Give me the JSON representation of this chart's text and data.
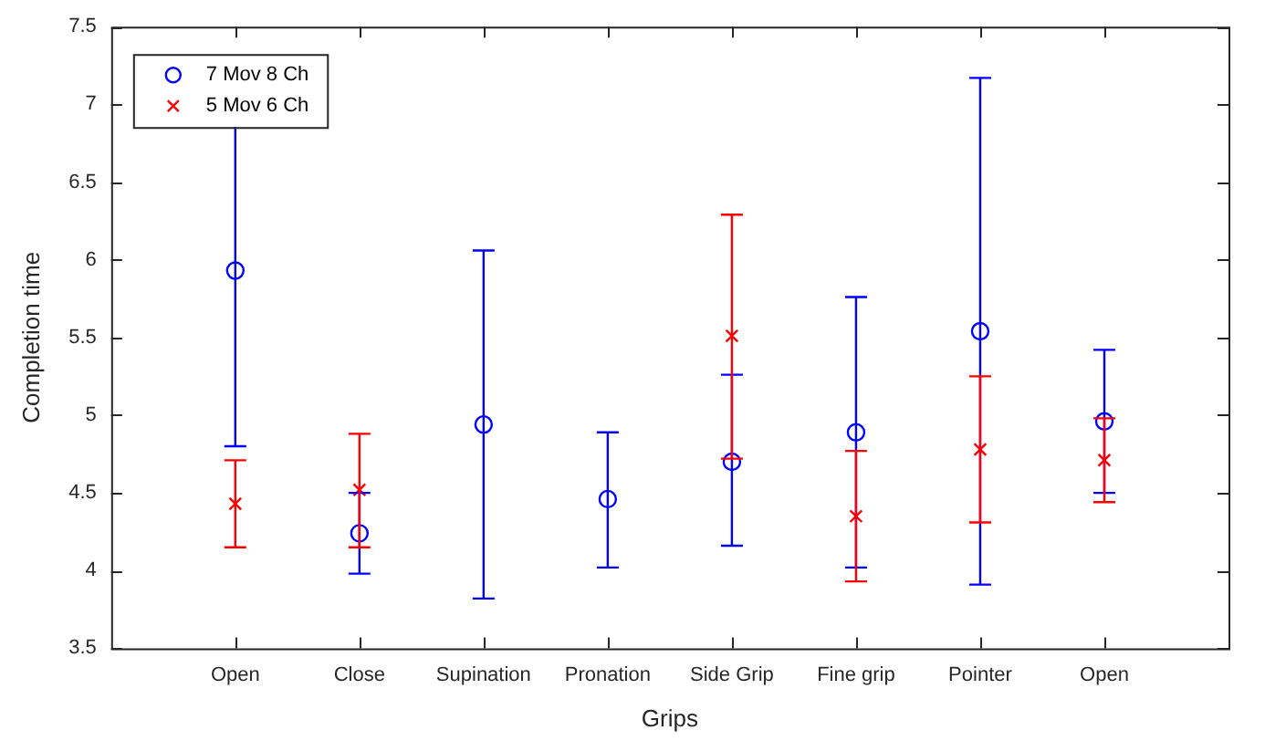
{
  "chart_data": {
    "type": "scatter",
    "xlabel": "Grips",
    "ylabel": "Completion time",
    "categories": [
      "Open",
      "Close",
      "Supination",
      "Pronation",
      "Side Grip",
      "Fine grip",
      "Pointer",
      "Open"
    ],
    "ylim": [
      3.5,
      7.5
    ],
    "yticks": [
      3.5,
      4,
      4.5,
      5,
      5.5,
      6,
      6.5,
      7,
      7.5
    ],
    "legend": "top left",
    "grid": false,
    "series": [
      {
        "name": "7 Mov 8 Ch",
        "color": "#0000ff",
        "marker": "circle",
        "values": [
          5.93,
          4.24,
          4.94,
          4.46,
          4.7,
          4.89,
          5.54,
          4.96
        ],
        "errors": [
          [
            4.8,
            7.06
          ],
          [
            3.98,
            4.5
          ],
          [
            3.82,
            6.06
          ],
          [
            4.02,
            4.89
          ],
          [
            4.16,
            5.26
          ],
          [
            4.02,
            5.76
          ],
          [
            3.91,
            7.17
          ],
          [
            4.5,
            5.42
          ]
        ]
      },
      {
        "name": "5 Mov 6 Ch",
        "color": "#ff0000",
        "marker": "cross",
        "values": [
          4.43,
          4.52,
          null,
          null,
          5.51,
          4.35,
          4.78,
          4.71
        ],
        "errors": [
          [
            4.15,
            4.71
          ],
          [
            4.15,
            4.88
          ],
          null,
          null,
          [
            4.72,
            6.29
          ],
          [
            3.93,
            4.77
          ],
          [
            4.31,
            5.25
          ],
          [
            4.44,
            4.98
          ]
        ]
      }
    ]
  }
}
